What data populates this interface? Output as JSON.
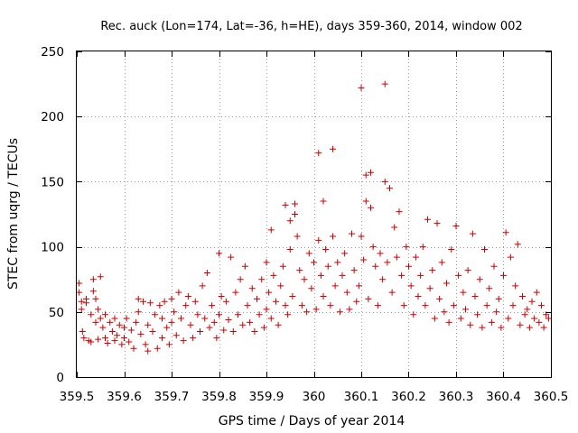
{
  "chart_data": {
    "type": "scatter",
    "title": "Rec. auck (Lon=174, Lat=-36, h=HE), days 359-360, 2014, window 002",
    "xlabel": "GPS time / Days of year 2014",
    "ylabel": "STEC from uqrg / TECUs",
    "xlim": [
      359.5,
      360.5
    ],
    "ylim": [
      0,
      250
    ],
    "grid": true,
    "x_ticks": [
      359.5,
      359.6,
      359.7,
      359.8,
      359.9,
      360.0,
      360.1,
      360.2,
      360.3,
      360.4,
      360.5
    ],
    "x_tick_labels": [
      "359.5",
      "359.6",
      "359.7",
      "359.8",
      "359.9",
      "360",
      "360.1",
      "360.2",
      "360.3",
      "360.4",
      "360.5"
    ],
    "y_ticks": [
      0,
      50,
      100,
      150,
      200,
      250
    ],
    "y_tick_labels": [
      "0",
      "50",
      "100",
      "150",
      "200",
      "250"
    ],
    "marker": "plus",
    "series": [
      {
        "name": "STEC",
        "color": "#cc0000",
        "points": [
          [
            359.505,
            72
          ],
          [
            359.505,
            65
          ],
          [
            359.51,
            58
          ],
          [
            359.51,
            52
          ],
          [
            359.512,
            35
          ],
          [
            359.515,
            30
          ],
          [
            359.52,
            57
          ],
          [
            359.52,
            60
          ],
          [
            359.525,
            28
          ],
          [
            359.53,
            27
          ],
          [
            359.53,
            48
          ],
          [
            359.535,
            66
          ],
          [
            359.535,
            75
          ],
          [
            359.54,
            42
          ],
          [
            359.54,
            60
          ],
          [
            359.545,
            29
          ],
          [
            359.545,
            52
          ],
          [
            359.55,
            77
          ],
          [
            359.55,
            45
          ],
          [
            359.555,
            38
          ],
          [
            359.56,
            30
          ],
          [
            359.56,
            48
          ],
          [
            359.565,
            26
          ],
          [
            359.57,
            42
          ],
          [
            359.575,
            35
          ],
          [
            359.58,
            28
          ],
          [
            359.58,
            45
          ],
          [
            359.585,
            32
          ],
          [
            359.59,
            40
          ],
          [
            359.595,
            25
          ],
          [
            359.6,
            38
          ],
          [
            359.6,
            30
          ],
          [
            359.605,
            45
          ],
          [
            359.61,
            27
          ],
          [
            359.615,
            36
          ],
          [
            359.62,
            22
          ],
          [
            359.625,
            42
          ],
          [
            359.63,
            50
          ],
          [
            359.63,
            60
          ],
          [
            359.635,
            33
          ],
          [
            359.64,
            58
          ],
          [
            359.645,
            25
          ],
          [
            359.65,
            40
          ],
          [
            359.65,
            20
          ],
          [
            359.655,
            57
          ],
          [
            359.66,
            35
          ],
          [
            359.665,
            48
          ],
          [
            359.67,
            22
          ],
          [
            359.675,
            55
          ],
          [
            359.68,
            45
          ],
          [
            359.68,
            30
          ],
          [
            359.685,
            58
          ],
          [
            359.69,
            38
          ],
          [
            359.695,
            25
          ],
          [
            359.7,
            60
          ],
          [
            359.7,
            42
          ],
          [
            359.705,
            50
          ],
          [
            359.71,
            32
          ],
          [
            359.715,
            65
          ],
          [
            359.72,
            45
          ],
          [
            359.725,
            28
          ],
          [
            359.73,
            55
          ],
          [
            359.735,
            62
          ],
          [
            359.74,
            40
          ],
          [
            359.745,
            30
          ],
          [
            359.75,
            58
          ],
          [
            359.755,
            48
          ],
          [
            359.76,
            35
          ],
          [
            359.765,
            70
          ],
          [
            359.77,
            45
          ],
          [
            359.775,
            80
          ],
          [
            359.78,
            38
          ],
          [
            359.785,
            55
          ],
          [
            359.79,
            42
          ],
          [
            359.795,
            30
          ],
          [
            359.8,
            95
          ],
          [
            359.8,
            48
          ],
          [
            359.805,
            62
          ],
          [
            359.81,
            36
          ],
          [
            359.815,
            58
          ],
          [
            359.82,
            44
          ],
          [
            359.825,
            92
          ],
          [
            359.83,
            35
          ],
          [
            359.835,
            65
          ],
          [
            359.84,
            48
          ],
          [
            359.845,
            75
          ],
          [
            359.85,
            40
          ],
          [
            359.855,
            85
          ],
          [
            359.86,
            55
          ],
          [
            359.865,
            42
          ],
          [
            359.87,
            68
          ],
          [
            359.875,
            35
          ],
          [
            359.88,
            60
          ],
          [
            359.885,
            48
          ],
          [
            359.89,
            75
          ],
          [
            359.895,
            38
          ],
          [
            359.9,
            88
          ],
          [
            359.9,
            52
          ],
          [
            359.905,
            65
          ],
          [
            359.91,
            113
          ],
          [
            359.91,
            45
          ],
          [
            359.915,
            78
          ],
          [
            359.92,
            58
          ],
          [
            359.925,
            40
          ],
          [
            359.93,
            70
          ],
          [
            359.935,
            85
          ],
          [
            359.94,
            132
          ],
          [
            359.94,
            55
          ],
          [
            359.945,
            48
          ],
          [
            359.95,
            120
          ],
          [
            359.95,
            98
          ],
          [
            359.955,
            62
          ],
          [
            359.96,
            133
          ],
          [
            359.96,
            125
          ],
          [
            359.965,
            108
          ],
          [
            359.97,
            82
          ],
          [
            359.975,
            55
          ],
          [
            359.98,
            75
          ],
          [
            359.985,
            50
          ],
          [
            359.99,
            95
          ],
          [
            359.995,
            68
          ],
          [
            360.0,
            88
          ],
          [
            360.005,
            52
          ],
          [
            360.01,
            172
          ],
          [
            360.01,
            105
          ],
          [
            360.015,
            78
          ],
          [
            360.02,
            135
          ],
          [
            360.02,
            62
          ],
          [
            360.025,
            98
          ],
          [
            360.03,
            85
          ],
          [
            360.035,
            55
          ],
          [
            360.04,
            175
          ],
          [
            360.04,
            108
          ],
          [
            360.045,
            70
          ],
          [
            360.05,
            88
          ],
          [
            360.055,
            50
          ],
          [
            360.06,
            78
          ],
          [
            360.065,
            95
          ],
          [
            360.07,
            65
          ],
          [
            360.075,
            52
          ],
          [
            360.08,
            110
          ],
          [
            360.085,
            82
          ],
          [
            360.09,
            58
          ],
          [
            360.095,
            70
          ],
          [
            360.1,
            222
          ],
          [
            360.1,
            108
          ],
          [
            360.105,
            90
          ],
          [
            360.11,
            155
          ],
          [
            360.11,
            135
          ],
          [
            360.115,
            60
          ],
          [
            360.12,
            157
          ],
          [
            360.12,
            130
          ],
          [
            360.125,
            100
          ],
          [
            360.13,
            85
          ],
          [
            360.135,
            55
          ],
          [
            360.14,
            95
          ],
          [
            360.145,
            75
          ],
          [
            360.15,
            225
          ],
          [
            360.15,
            150
          ],
          [
            360.155,
            88
          ],
          [
            360.16,
            145
          ],
          [
            360.165,
            65
          ],
          [
            360.17,
            115
          ],
          [
            360.175,
            92
          ],
          [
            360.18,
            127
          ],
          [
            360.185,
            78
          ],
          [
            360.19,
            55
          ],
          [
            360.195,
            100
          ],
          [
            360.2,
            85
          ],
          [
            360.205,
            70
          ],
          [
            360.21,
            48
          ],
          [
            360.215,
            92
          ],
          [
            360.22,
            62
          ],
          [
            360.225,
            78
          ],
          [
            360.23,
            100
          ],
          [
            360.235,
            55
          ],
          [
            360.24,
            121
          ],
          [
            360.245,
            68
          ],
          [
            360.25,
            82
          ],
          [
            360.255,
            45
          ],
          [
            360.26,
            118
          ],
          [
            360.265,
            60
          ],
          [
            360.27,
            88
          ],
          [
            360.275,
            50
          ],
          [
            360.28,
            72
          ],
          [
            360.285,
            42
          ],
          [
            360.29,
            98
          ],
          [
            360.295,
            55
          ],
          [
            360.3,
            116
          ],
          [
            360.305,
            78
          ],
          [
            360.31,
            45
          ],
          [
            360.315,
            65
          ],
          [
            360.32,
            52
          ],
          [
            360.325,
            82
          ],
          [
            360.33,
            40
          ],
          [
            360.335,
            110
          ],
          [
            360.34,
            62
          ],
          [
            360.345,
            48
          ],
          [
            360.35,
            75
          ],
          [
            360.355,
            38
          ],
          [
            360.36,
            98
          ],
          [
            360.365,
            55
          ],
          [
            360.37,
            68
          ],
          [
            360.375,
            42
          ],
          [
            360.38,
            85
          ],
          [
            360.385,
            50
          ],
          [
            360.39,
            60
          ],
          [
            360.395,
            38
          ],
          [
            360.4,
            78
          ],
          [
            360.405,
            111
          ],
          [
            360.41,
            45
          ],
          [
            360.415,
            92
          ],
          [
            360.42,
            55
          ],
          [
            360.425,
            70
          ],
          [
            360.43,
            102
          ],
          [
            360.435,
            40
          ],
          [
            360.44,
            62
          ],
          [
            360.445,
            48
          ],
          [
            360.45,
            52
          ],
          [
            360.455,
            38
          ],
          [
            360.46,
            58
          ],
          [
            360.465,
            45
          ],
          [
            360.47,
            65
          ],
          [
            360.475,
            42
          ],
          [
            360.48,
            55
          ],
          [
            360.485,
            38
          ],
          [
            360.49,
            48
          ],
          [
            360.495,
            45
          ]
        ]
      }
    ]
  }
}
